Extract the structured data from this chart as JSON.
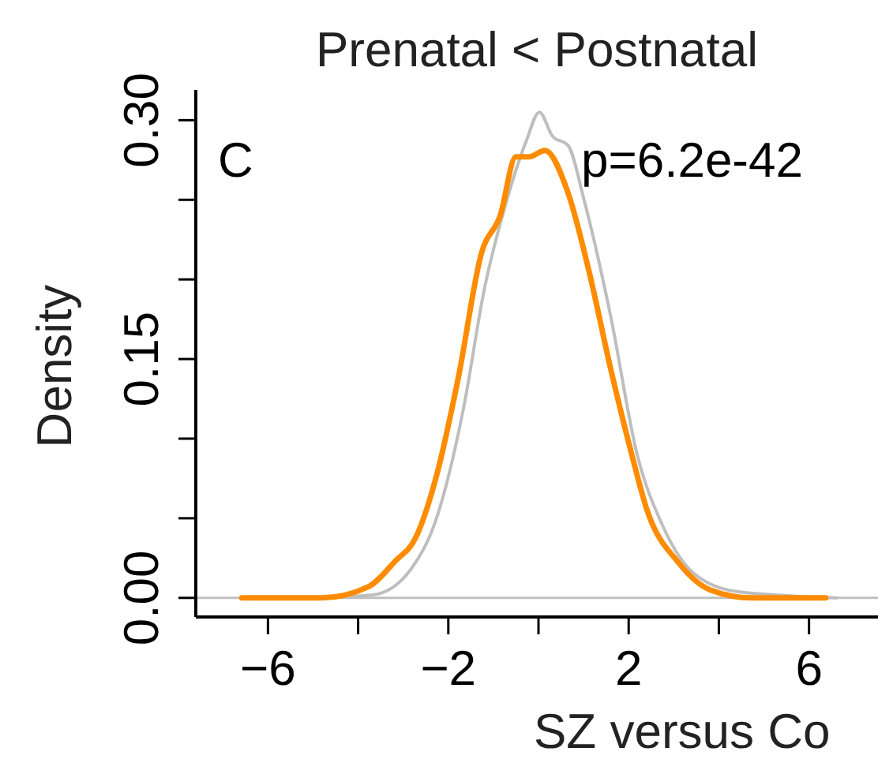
{
  "chart_data": {
    "type": "line",
    "title": "Prenatal < Postnatal",
    "xlabel": "SZ versus Co",
    "ylabel": "Density",
    "annotations": [
      "C",
      "p=6.2e-42"
    ],
    "xlim": [
      -7.6,
      7.6
    ],
    "ylim": [
      -0.012,
      0.319
    ],
    "xticks": [
      -6,
      {
        "value": -4,
        "label": null
      },
      -2,
      {
        "value": 0,
        "label": null
      },
      2,
      {
        "value": 4,
        "label": null
      },
      6
    ],
    "yticks": [
      {
        "value": 0,
        "label": "0.00"
      },
      {
        "value": 0.05,
        "label": null
      },
      {
        "value": 0.1,
        "label": null
      },
      {
        "value": 0.15,
        "label": "0.15"
      },
      {
        "value": 0.2,
        "label": null
      },
      {
        "value": 0.25,
        "label": null
      },
      {
        "value": 0.3,
        "label": "0.30"
      }
    ],
    "ref_lines": [
      {
        "axis": "y",
        "value": 0,
        "color": "#c0c0c0"
      }
    ],
    "grid": false,
    "marker": "none",
    "line_style": "solid",
    "series": [
      {
        "color": "#bebebe",
        "x": [
          -4.81,
          -3.65,
          -2.83,
          -2.25,
          -1.67,
          -1.2,
          -0.73,
          -0.27,
          0.02,
          0.31,
          0.66,
          1.01,
          1.6,
          2.18,
          2.76,
          3.46,
          4.4,
          6.61
        ],
        "values": [
          0,
          0.002,
          0.018,
          0.051,
          0.118,
          0.194,
          0.247,
          0.287,
          0.305,
          0.29,
          0.284,
          0.25,
          0.177,
          0.091,
          0.045,
          0.015,
          0.004,
          0
        ]
      },
      {
        "color": "#ff8c00",
        "x": [
          -6.58,
          -4.81,
          -3.77,
          -3.18,
          -2.72,
          -2.25,
          -1.78,
          -1.26,
          -0.85,
          -0.5,
          -0.21,
          0.14,
          0.66,
          1.13,
          1.6,
          2.06,
          2.41,
          3.11,
          3.81,
          4.74,
          6.37
        ],
        "values": [
          0,
          0,
          0.007,
          0.023,
          0.038,
          0.078,
          0.138,
          0.217,
          0.24,
          0.277,
          0.277,
          0.281,
          0.254,
          0.204,
          0.144,
          0.091,
          0.055,
          0.022,
          0.005,
          0,
          0
        ]
      }
    ]
  }
}
